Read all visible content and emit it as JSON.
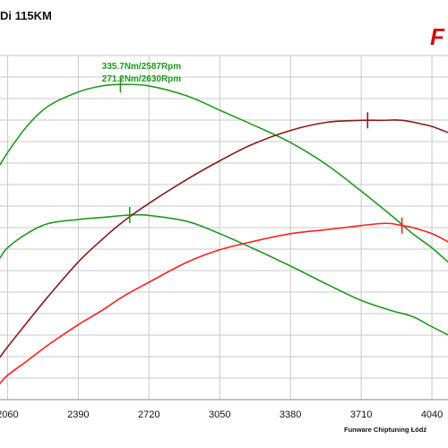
{
  "page": {
    "title": "Di 115KM",
    "logo_text": "F",
    "footer": "Funware Chiptuning Łódź"
  },
  "colors": {
    "torque_stock": "#1f9a1f",
    "torque_tuned": "#1f9a1f",
    "power_stock": "#ff2020",
    "power_tuned": "#8b1a1a",
    "grid": "#c8c8c8",
    "annotation": "#1f9a1f",
    "logo": "#cc1111"
  },
  "chart_data": {
    "type": "line",
    "title": "",
    "xlabel": "",
    "ylabel": "",
    "x_ticks": [
      2060,
      2390,
      2720,
      3050,
      3380,
      3710,
      4040
    ],
    "xlim": [
      2025,
      4115
    ],
    "grid": true,
    "series": [
      {
        "key": "torque_tuned",
        "x": [
          2025,
          2060,
          2150,
          2250,
          2390,
          2500,
          2587,
          2720,
          2900,
          3050,
          3200,
          3380,
          3550,
          3710,
          3850,
          3950,
          4040,
          4115
        ],
        "y": [
          296,
          302,
          315,
          325,
          332,
          335,
          335.7,
          335,
          330,
          323,
          316,
          307,
          296,
          283,
          271,
          262,
          255,
          248
        ]
      },
      {
        "key": "torque_stock",
        "x": [
          2025,
          2060,
          2150,
          2250,
          2390,
          2500,
          2630,
          2720,
          2900,
          3050,
          3200,
          3380,
          3550,
          3710,
          3850,
          3950,
          4040,
          4115
        ],
        "y": [
          250,
          255,
          262,
          267,
          269,
          270,
          271.2,
          271,
          268,
          262,
          255,
          246,
          237,
          229,
          224,
          221,
          216,
          212
        ]
      },
      {
        "key": "power_tuned",
        "x": [
          2025,
          2060,
          2150,
          2250,
          2390,
          2500,
          2600,
          2720,
          2900,
          3050,
          3200,
          3380,
          3550,
          3710,
          3800,
          3900,
          4000,
          4040,
          4115
        ],
        "y": [
          201,
          206,
          218,
          231,
          248,
          259,
          268,
          277,
          289,
          298,
          306,
          313,
          317,
          318,
          318,
          318,
          316,
          315,
          312
        ]
      },
      {
        "key": "power_stock",
        "x": [
          2025,
          2060,
          2150,
          2250,
          2390,
          2500,
          2600,
          2720,
          2900,
          3050,
          3200,
          3380,
          3550,
          3710,
          3800,
          3850,
          3900,
          3950,
          4040,
          4115
        ],
        "y": [
          188,
          192,
          199,
          207,
          217,
          224,
          231,
          238,
          248,
          254,
          258,
          262,
          264,
          266,
          267,
          267,
          266,
          265,
          262,
          258
        ]
      }
    ],
    "markers": [
      {
        "series": "torque_tuned",
        "x": 2587,
        "y": 335.7
      },
      {
        "series": "torque_stock",
        "x": 2630,
        "y": 271.2
      },
      {
        "series": "power_tuned",
        "x": 3740,
        "y": 318
      },
      {
        "series": "power_stock",
        "x": 3900,
        "y": 266
      }
    ],
    "annotations": [
      {
        "text": "335.7Nm/2587Rpm"
      },
      {
        "text": "271.2Nm/2630Rpm"
      }
    ],
    "ylim": [
      180,
      350
    ]
  }
}
